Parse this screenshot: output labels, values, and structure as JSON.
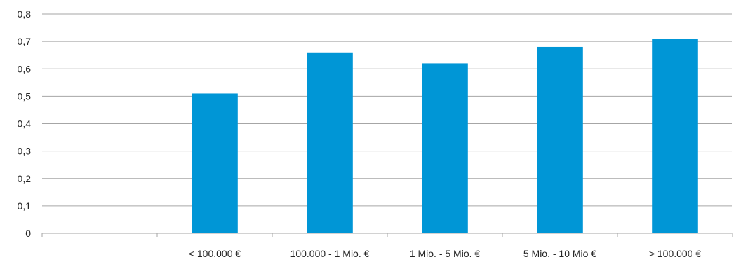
{
  "chart_data": {
    "type": "bar",
    "categories": [
      "",
      "< 100.000 €",
      "100.000 - 1 Mio. €",
      "1 Mio. - 5 Mio. €",
      "5 Mio. - 10 Mio  €",
      "> 100.000 €"
    ],
    "values": [
      null,
      0.51,
      0.66,
      0.62,
      0.68,
      0.71
    ],
    "ylim": [
      0,
      0.8
    ],
    "yticks": [
      "0",
      "0,1",
      "0,2",
      "0,3",
      "0,4",
      "0,5",
      "0,6",
      "0,7",
      "0,8"
    ],
    "grid": true,
    "legend": "none",
    "bar_color": "#0096d6"
  }
}
